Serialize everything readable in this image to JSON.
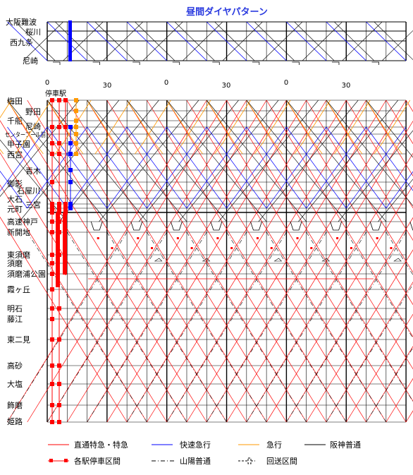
{
  "title": "昼間ダイヤパターン",
  "column_header": "停車駅",
  "top_panel": {
    "stations": [
      "大阪難波",
      "桜川",
      "西九条",
      "尼崎"
    ]
  },
  "main_panel": {
    "stations": [
      "梅田",
      "野田",
      "千船",
      "尼崎",
      "センタープール前",
      "甲子園",
      "西宮",
      "青木",
      "御影",
      "石屋川",
      "大石",
      "三宮",
      "元町",
      "高速神戸",
      "新開地",
      "東須磨",
      "須磨",
      "須磨浦公園",
      "霞ヶ丘",
      "明石",
      "藤江",
      "東二見",
      "高砂",
      "大塩",
      "飾磨",
      "姫路"
    ]
  },
  "time_ticks": [
    "0",
    "30",
    "0",
    "30",
    "0",
    "30"
  ],
  "legend": [
    {
      "label": "直通特急・特急",
      "color": "#ff0000",
      "style": "solid"
    },
    {
      "label": "快速急行",
      "color": "#0000ff",
      "style": "solid"
    },
    {
      "label": "急行",
      "color": "#ff9900",
      "style": "solid"
    },
    {
      "label": "阪神普通",
      "color": "#000000",
      "style": "solid"
    },
    {
      "label": "各駅停車区間",
      "color": "#ff0000",
      "style": "dotted-line"
    },
    {
      "label": "山陽普通",
      "color": "#000000",
      "style": "dash-dot"
    },
    {
      "label": "回送区間",
      "color": "#000000",
      "style": "deadhead"
    }
  ]
}
